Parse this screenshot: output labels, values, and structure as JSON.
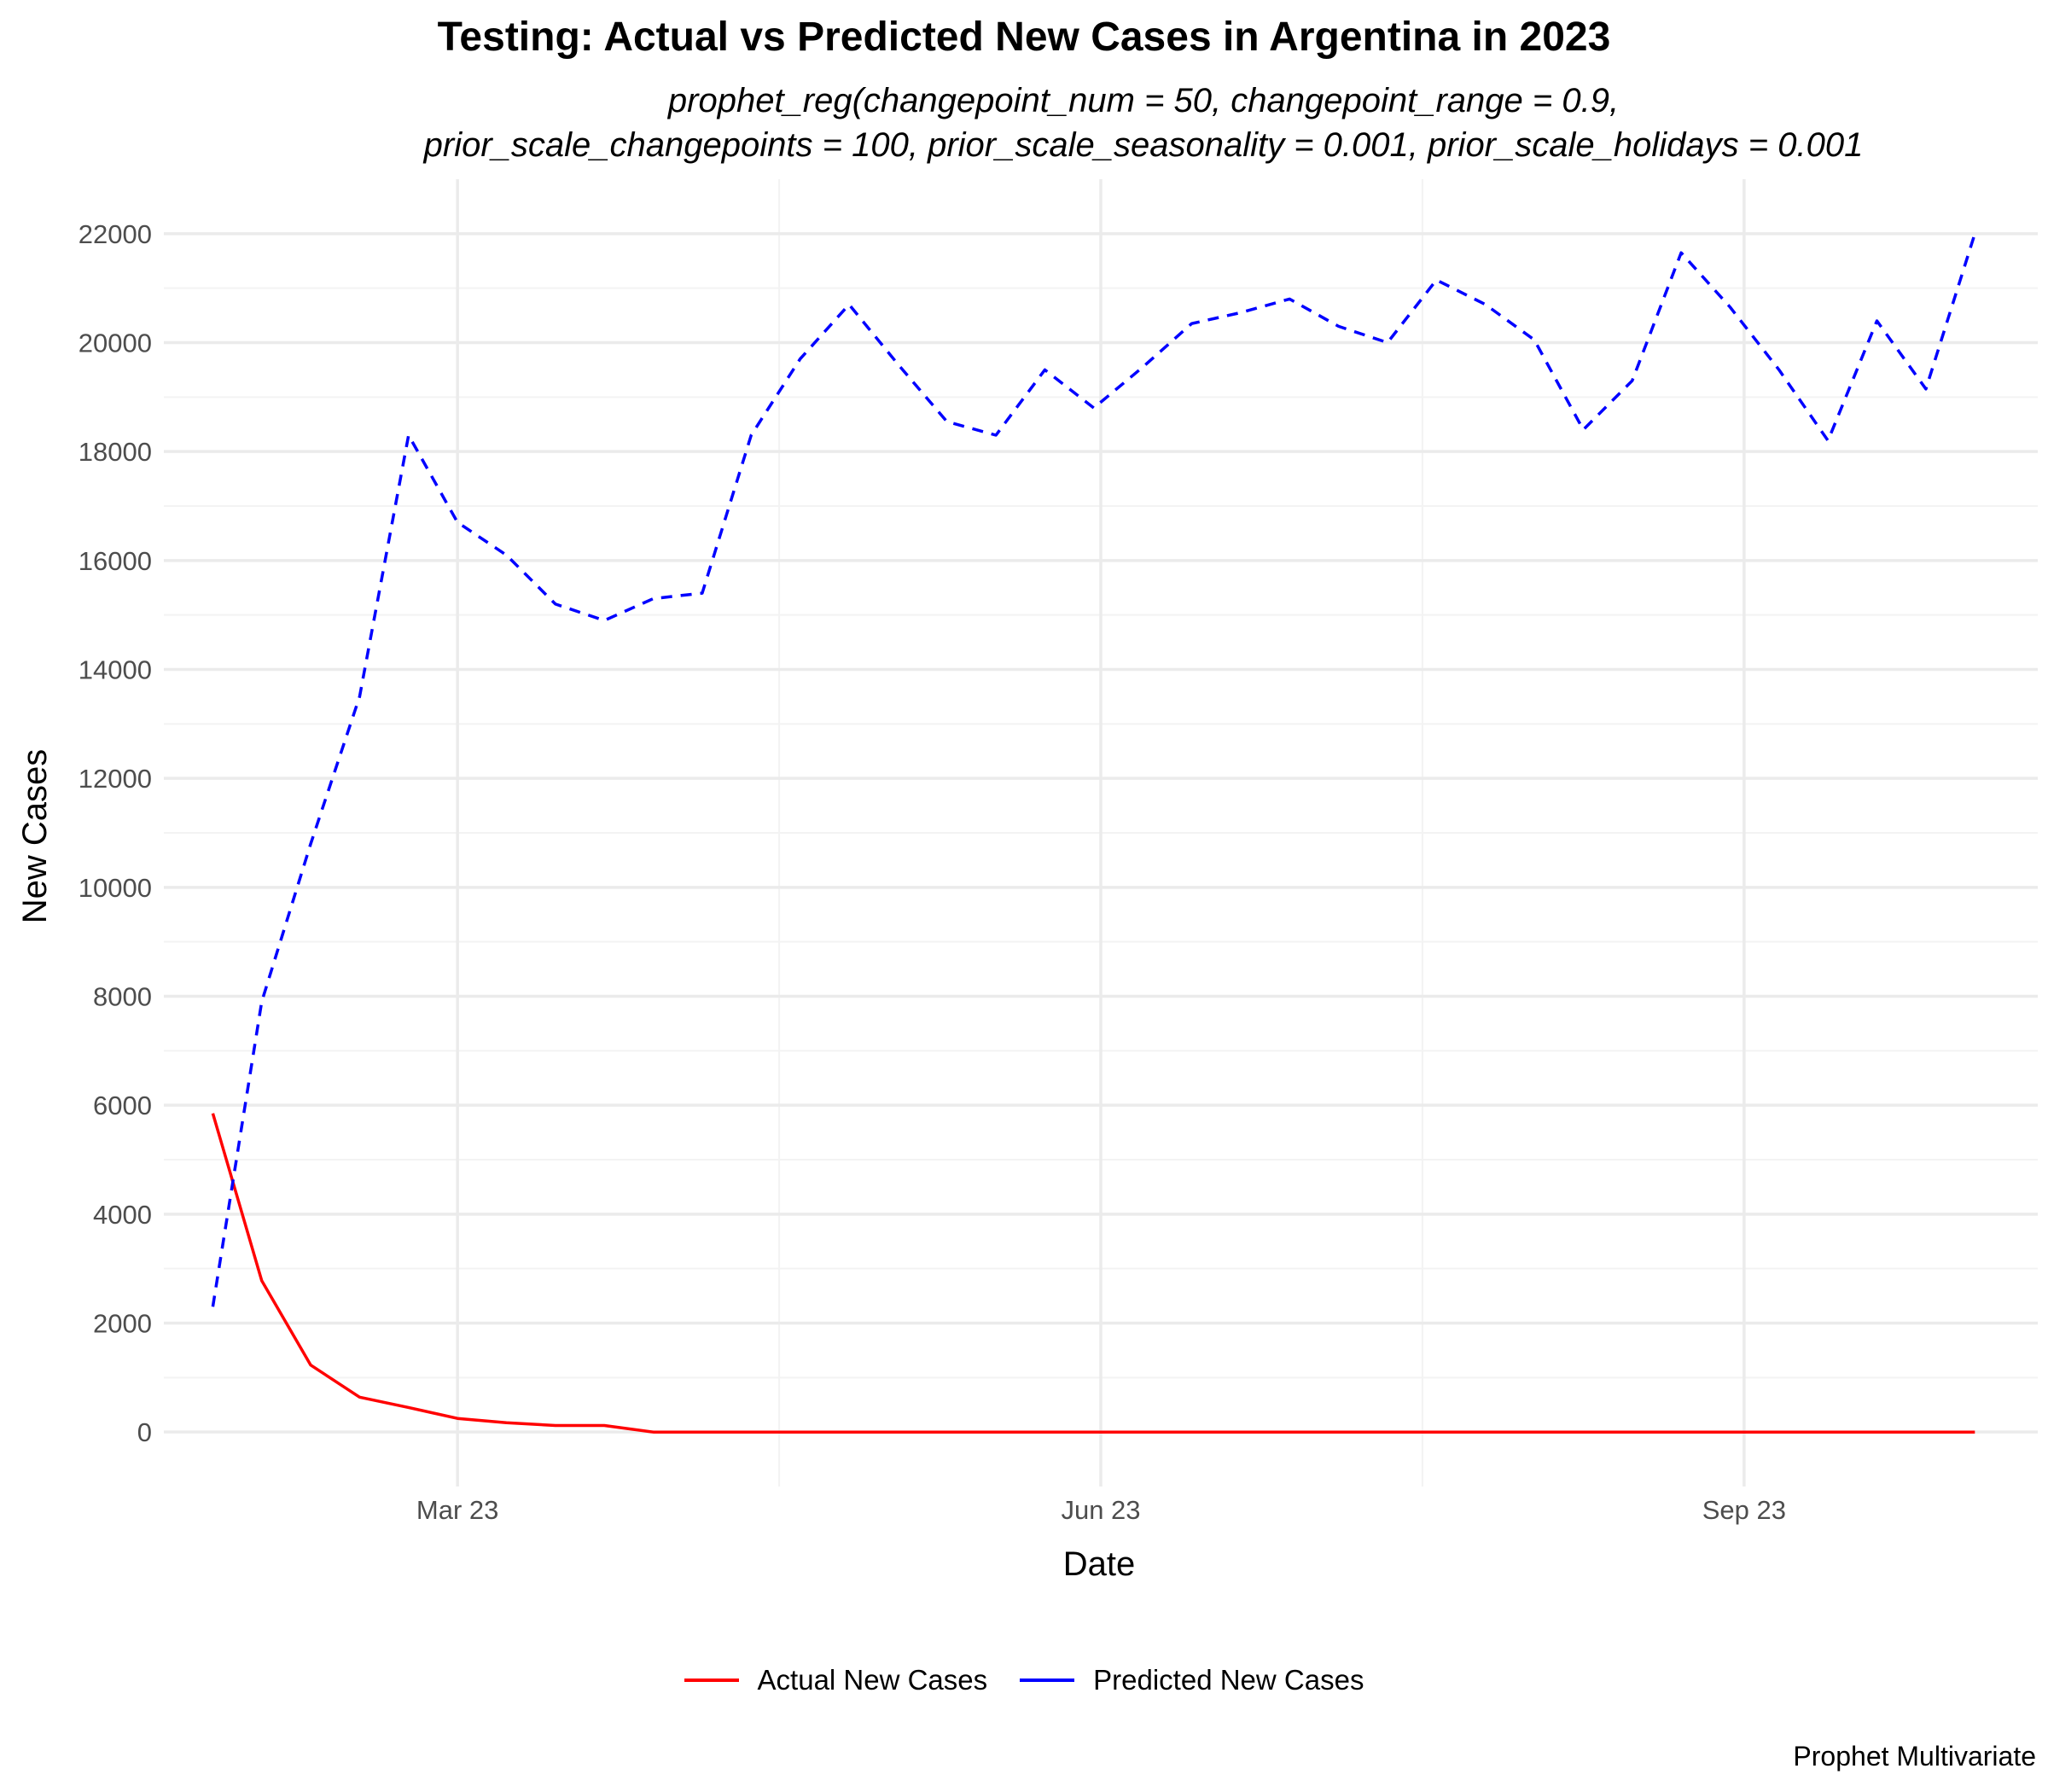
{
  "chart_data": {
    "type": "line",
    "title": "Testing: Actual vs Predicted New Cases in Argentina in 2023",
    "subtitle_line1": "prophet_reg(changepoint_num = 50, changepoint_range = 0.9,",
    "subtitle_line2": "prior_scale_changepoints = 100, prior_scale_seasonality = 0.001, prior_scale_holidays = 0.001",
    "caption": "Prophet Multivariate",
    "xlabel": "Date",
    "ylabel": "New Cases",
    "xlim": [
      "2023-01-18",
      "2023-10-13"
    ],
    "ylim": [
      -1000,
      23000
    ],
    "x_ticks": [
      {
        "date": "2023-03-01",
        "label": "Mar 23"
      },
      {
        "date": "2023-06-01",
        "label": "Jun 23"
      },
      {
        "date": "2023-09-01",
        "label": "Sep 23"
      }
    ],
    "y_ticks": [
      0,
      2000,
      4000,
      6000,
      8000,
      10000,
      12000,
      14000,
      16000,
      18000,
      20000,
      22000
    ],
    "grid": true,
    "legend_position": "bottom",
    "series": [
      {
        "name": "Actual New Cases",
        "color": "#ff0000",
        "dash": "solid",
        "x": [
          "2023-01-25",
          "2023-02-01",
          "2023-02-08",
          "2023-02-15",
          "2023-02-22",
          "2023-03-01",
          "2023-03-08",
          "2023-03-15",
          "2023-03-22",
          "2023-03-29",
          "2023-04-05",
          "2023-04-12",
          "2023-04-19",
          "2023-04-26",
          "2023-05-03",
          "2023-05-10",
          "2023-05-17",
          "2023-05-24",
          "2023-05-31",
          "2023-06-07",
          "2023-06-14",
          "2023-06-21",
          "2023-06-28",
          "2023-07-05",
          "2023-07-12",
          "2023-07-19",
          "2023-07-26",
          "2023-08-02",
          "2023-08-09",
          "2023-08-16",
          "2023-08-23",
          "2023-08-30",
          "2023-09-06",
          "2023-09-13",
          "2023-09-20",
          "2023-09-27",
          "2023-10-04"
        ],
        "values": [
          5850,
          2780,
          1230,
          640,
          450,
          250,
          170,
          120,
          120,
          0,
          0,
          0,
          0,
          0,
          0,
          0,
          0,
          0,
          0,
          0,
          0,
          0,
          0,
          0,
          0,
          0,
          0,
          0,
          0,
          0,
          0,
          0,
          0,
          0,
          0,
          0,
          0
        ]
      },
      {
        "name": "Predicted New Cases",
        "color": "#0000ff",
        "dash": "dashed",
        "x": [
          "2023-01-25",
          "2023-02-01",
          "2023-02-08",
          "2023-02-15",
          "2023-02-22",
          "2023-03-01",
          "2023-03-08",
          "2023-03-15",
          "2023-03-22",
          "2023-03-29",
          "2023-04-05",
          "2023-04-12",
          "2023-04-19",
          "2023-04-26",
          "2023-05-03",
          "2023-05-10",
          "2023-05-17",
          "2023-05-24",
          "2023-05-31",
          "2023-06-07",
          "2023-06-14",
          "2023-06-21",
          "2023-06-28",
          "2023-07-05",
          "2023-07-12",
          "2023-07-19",
          "2023-07-26",
          "2023-08-02",
          "2023-08-09",
          "2023-08-16",
          "2023-08-23",
          "2023-08-30",
          "2023-09-06",
          "2023-09-13",
          "2023-09-20",
          "2023-09-27",
          "2023-10-04"
        ],
        "values": [
          2300,
          7900,
          10800,
          13500,
          18300,
          16700,
          16100,
          15200,
          14900,
          15300,
          15400,
          18300,
          19700,
          20700,
          19600,
          18550,
          18300,
          19500,
          18800,
          19550,
          20350,
          20550,
          20800,
          20300,
          20000,
          21150,
          20700,
          20050,
          18400,
          19300,
          21650,
          20650,
          19500,
          18200,
          20400,
          19150,
          22000
        ]
      }
    ]
  }
}
